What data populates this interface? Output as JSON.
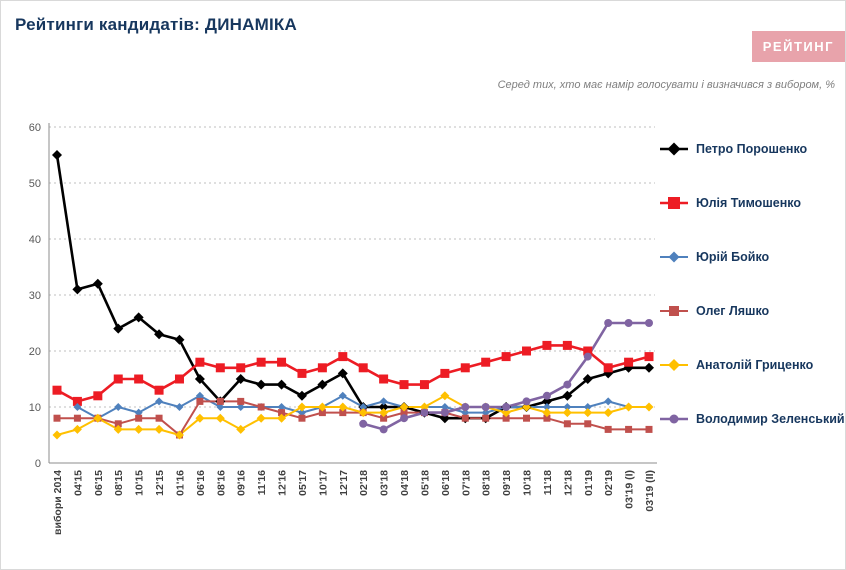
{
  "header": {
    "title": "Рейтинги кандидатів: ДИНАМІКА",
    "logo": "РЕЙТИНГ",
    "subtitle": "Серед тих, хто має намір голосувати і визначився з вибором, %"
  },
  "chart_data": {
    "type": "line",
    "title": "Рейтинги кандидатів: ДИНАМІКА",
    "subtitle": "Серед тих, хто має намір голосувати і визначився з вибором, %",
    "xlabel": "",
    "ylabel": "%",
    "ylim": [
      0,
      60
    ],
    "ytick_step": 10,
    "grid": "horizontal-dotted",
    "legend_position": "right",
    "categories": [
      "вибори 2014",
      "04'15",
      "06'15",
      "08'15",
      "10'15",
      "12'15",
      "01'16",
      "06'16",
      "08'16",
      "09'16",
      "11'16",
      "12'16",
      "05'17",
      "10'17",
      "12'17",
      "02'18",
      "03'18",
      "04'18",
      "05'18",
      "06'18",
      "07'18",
      "08'18",
      "09'18",
      "10'18",
      "11'18",
      "12'18",
      "01'19",
      "02'19",
      "03'19 (I)",
      "03'19 (II)"
    ],
    "series": [
      {
        "name": "Петро Порошенко",
        "color": "#000000",
        "marker": "diamond",
        "marker_size": 5,
        "line_width": 2.6,
        "values": [
          55,
          31,
          32,
          24,
          26,
          23,
          22,
          15,
          11,
          15,
          14,
          14,
          12,
          14,
          16,
          10,
          10,
          10,
          9,
          8,
          8,
          8,
          10,
          10,
          11,
          12,
          15,
          16,
          17,
          17
        ]
      },
      {
        "name": "Юлія Тимошенко",
        "color": "#ed1c24",
        "marker": "square",
        "marker_size": 4.5,
        "line_width": 2.6,
        "values": [
          13,
          11,
          12,
          15,
          15,
          13,
          15,
          18,
          17,
          17,
          18,
          18,
          16,
          17,
          19,
          17,
          15,
          14,
          14,
          16,
          17,
          18,
          19,
          20,
          21,
          21,
          20,
          17,
          18,
          19
        ]
      },
      {
        "name": "Юрій Бойко",
        "color": "#4f81bd",
        "marker": "diamond",
        "marker_size": 4,
        "line_width": 2,
        "values": [
          null,
          10,
          8,
          10,
          9,
          11,
          10,
          12,
          10,
          10,
          10,
          10,
          9,
          10,
          12,
          10,
          11,
          10,
          10,
          10,
          9,
          9,
          10,
          10,
          10,
          10,
          10,
          11,
          10,
          10
        ]
      },
      {
        "name": "Олег Ляшко",
        "color": "#c0504d",
        "marker": "square",
        "marker_size": 3.5,
        "line_width": 2,
        "values": [
          8,
          8,
          8,
          7,
          8,
          8,
          5,
          11,
          11,
          11,
          10,
          9,
          8,
          9,
          9,
          9,
          8,
          9,
          9,
          9,
          8,
          8,
          8,
          8,
          8,
          7,
          7,
          6,
          6,
          6
        ]
      },
      {
        "name": "Анатолій Гриценко",
        "color": "#ffc000",
        "marker": "diamond",
        "marker_size": 4.5,
        "line_width": 2,
        "values": [
          5,
          6,
          8,
          6,
          6,
          6,
          5,
          8,
          8,
          6,
          8,
          8,
          10,
          10,
          10,
          9,
          9,
          10,
          10,
          12,
          10,
          10,
          9,
          10,
          9,
          9,
          9,
          9,
          10,
          10
        ]
      },
      {
        "name": "Володимир Зеленський",
        "color": "#8064a2",
        "marker": "circle",
        "marker_size": 4,
        "line_width": 2.6,
        "values": [
          null,
          null,
          null,
          null,
          null,
          null,
          null,
          null,
          null,
          null,
          null,
          null,
          null,
          null,
          null,
          7,
          6,
          8,
          9,
          9,
          10,
          10,
          10,
          11,
          12,
          14,
          19,
          25,
          25,
          25
        ]
      }
    ]
  }
}
